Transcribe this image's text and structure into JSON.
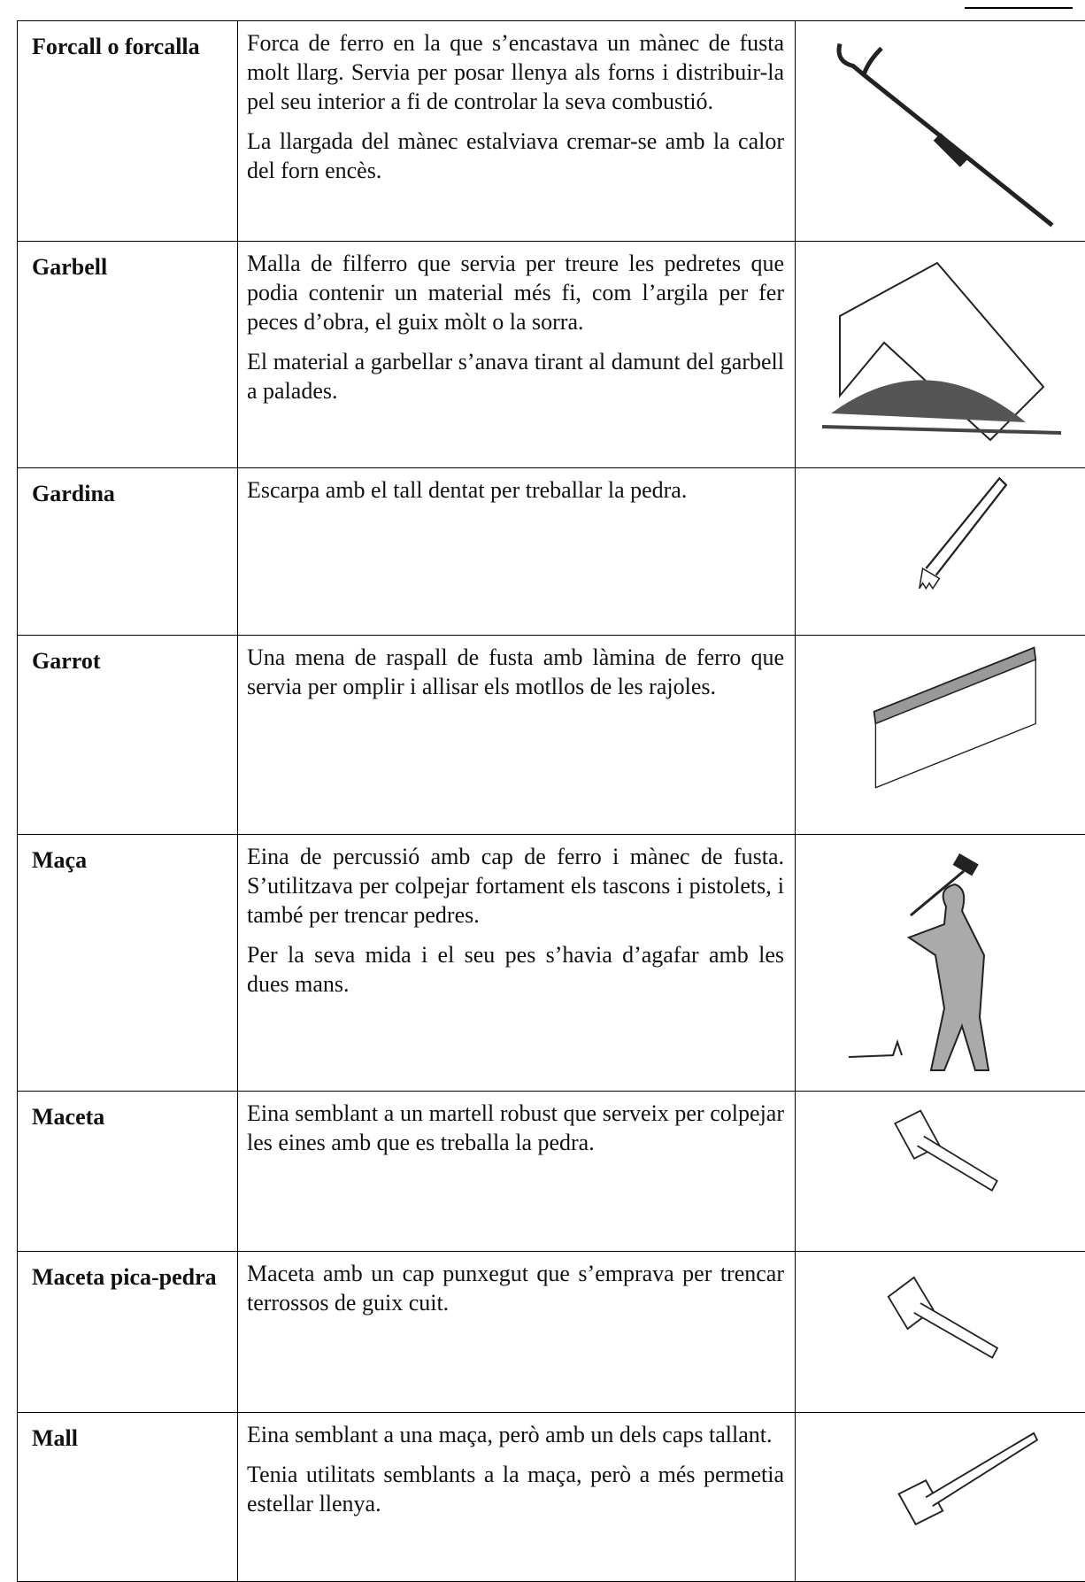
{
  "table": {
    "rows": [
      {
        "term": "Forcall o forcalla",
        "paragraphs": [
          "Forca de ferro en la que s’encastava un mànec de fusta molt llarg. Servia per posar llenya als forns i distribuir-la pel seu interior a fi de controlar la seva combustió.",
          "La llargada del mànec estalviava cremar-se amb la calor del forn encès."
        ]
      },
      {
        "term": "Garbell",
        "paragraphs": [
          "Malla de filferro que servia per treure les pedretes que podia contenir un material més fi, com l’argila per fer peces d’obra, el guix mòlt o la sorra.",
          "El material a garbellar s’anava tirant al damunt del garbell a palades."
        ]
      },
      {
        "term": "Gardina",
        "paragraphs": [
          "Escarpa amb el tall dentat per treballar la pedra."
        ]
      },
      {
        "term": "Garrot",
        "paragraphs": [
          "Una mena de raspall de fusta amb làmina de ferro que servia per omplir i allisar els motllos de les rajoles."
        ]
      },
      {
        "term": "Maça",
        "paragraphs": [
          "Eina de percussió amb cap de ferro i mànec de fusta. S’utilitzava per colpejar fortament els tascons i pistolets, i també per trencar pedres.",
          "Per la seva mida i el seu pes s’havia d’agafar amb les dues mans."
        ]
      },
      {
        "term": "Maceta",
        "paragraphs": [
          "Eina semblant a un martell robust que serveix per colpejar les eines amb que es treballa la pedra."
        ]
      },
      {
        "term": "Maceta pica-pedra",
        "paragraphs": [
          "Maceta amb un cap punxegut que s’emprava per trencar terrossos de guix cuit."
        ]
      },
      {
        "term": "Mall",
        "paragraphs": [
          "Eina semblant a una maça, però amb un dels caps tallant.",
          "Tenia utilitats semblants a la maça, però a més permetia estellar llenya."
        ]
      }
    ]
  }
}
